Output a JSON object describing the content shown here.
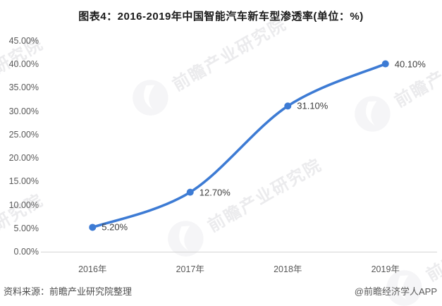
{
  "title": "图表4：2016-2019年中国智能汽车新车型渗透率(单位：%)",
  "watermark": {
    "text": "前瞻产业研究院"
  },
  "footer": {
    "source": "资料来源：前瞻产业研究院整理",
    "credit": "@前瞻经济学人APP"
  },
  "chart_data": {
    "type": "line",
    "title": "图表4：2016-2019年中国智能汽车新车型渗透率(单位：%)",
    "categories": [
      "2016年",
      "2017年",
      "2018年",
      "2019年"
    ],
    "values": [
      5.2,
      12.7,
      31.1,
      40.1
    ],
    "data_labels": [
      "5.20%",
      "12.70%",
      "31.10%",
      "40.10%"
    ],
    "yticks": [
      {
        "value": 45,
        "label": "45.00%"
      },
      {
        "value": 40,
        "label": "40.00%"
      },
      {
        "value": 35,
        "label": "35.00%"
      },
      {
        "value": 30,
        "label": "30.00%"
      },
      {
        "value": 25,
        "label": "25.00%"
      },
      {
        "value": 20,
        "label": "20.00%"
      },
      {
        "value": 15,
        "label": "15.00%"
      },
      {
        "value": 10,
        "label": "10.00%"
      },
      {
        "value": 5,
        "label": "5.00%"
      },
      {
        "value": 0,
        "label": "0.00%"
      }
    ],
    "ylim": [
      0,
      45
    ],
    "xlabel": "",
    "ylabel": "",
    "grid": false,
    "legend": "none",
    "line_color": "#3D7BD4",
    "marker_color": "#3D7BD4",
    "axis_line_color": "#d4d4d4",
    "smooth": true
  }
}
